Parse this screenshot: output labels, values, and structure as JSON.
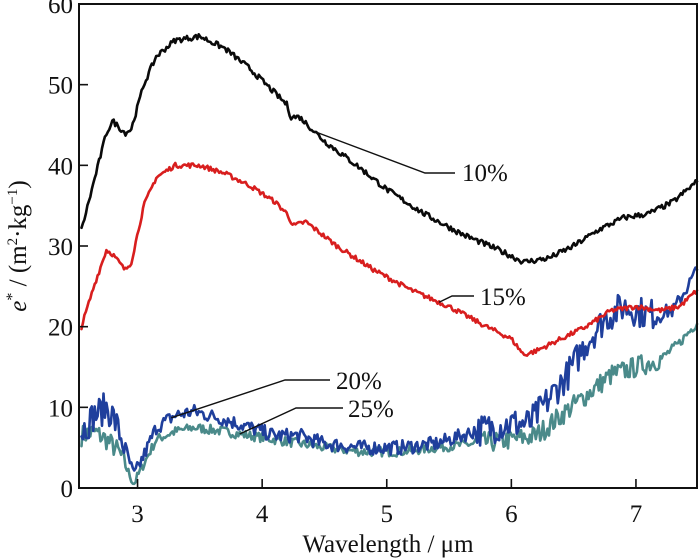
{
  "chart_data": {
    "type": "line",
    "title": "",
    "xlabel": "Wavelength / μm",
    "ylabel": "e* / (m²·kg⁻¹)",
    "ylabel_parts": {
      "symbol": "e",
      "sup1": "*",
      "unit_open": " / (m",
      "sup2": "2",
      "mid": "·kg",
      "sup3": "−1",
      "unit_close": ")"
    },
    "xlim": [
      2.53,
      7.49
    ],
    "ylim": [
      0,
      60
    ],
    "xticks": [
      3,
      4,
      5,
      6,
      7
    ],
    "xtick_labels": [
      "3",
      "4",
      "5",
      "6",
      "7"
    ],
    "yticks": [
      0,
      10,
      20,
      30,
      40,
      50,
      60
    ],
    "ytick_labels": [
      "0",
      "10",
      "20",
      "30",
      "40",
      "50",
      "60"
    ],
    "grid": false,
    "legend": "inline annotations",
    "series": [
      {
        "name": "10%",
        "color": "#0a0a0a",
        "x": [
          2.55,
          2.65,
          2.75,
          2.8,
          2.9,
          2.95,
          3.05,
          3.15,
          3.3,
          3.5,
          3.7,
          3.9,
          4.1,
          4.2,
          4.23,
          4.3,
          4.5,
          4.8,
          5.0,
          5.3,
          5.6,
          5.9,
          6.1,
          6.3,
          6.5,
          6.7,
          6.9,
          7.1,
          7.3,
          7.49
        ],
        "values": [
          32,
          38,
          44,
          45.5,
          44,
          44.5,
          50,
          53.5,
          55.5,
          56,
          54.5,
          52,
          49,
          47.5,
          46,
          46,
          43,
          39.5,
          37,
          34,
          31.5,
          29.5,
          28,
          28.5,
          30,
          32,
          33.5,
          34,
          35.5,
          38
        ]
      },
      {
        "name": "15%",
        "color": "#d81e1e",
        "x": [
          2.55,
          2.65,
          2.75,
          2.8,
          2.9,
          2.95,
          3.05,
          3.15,
          3.3,
          3.5,
          3.7,
          3.9,
          4.1,
          4.2,
          4.25,
          4.35,
          4.6,
          4.9,
          5.2,
          5.5,
          5.8,
          6.0,
          6.1,
          6.2,
          6.4,
          6.6,
          6.8,
          7.0,
          7.2,
          7.35,
          7.49
        ],
        "values": [
          20,
          25,
          29.5,
          29,
          27,
          28,
          35,
          38.5,
          40,
          40,
          39,
          37.5,
          35.5,
          34,
          32.5,
          33,
          30,
          27,
          24.5,
          22.5,
          20,
          18.5,
          16.5,
          17,
          18.5,
          20,
          22,
          22.5,
          22,
          22.5,
          24.5
        ]
      },
      {
        "name": "20%",
        "color": "#1f3f9c",
        "x": [
          2.55,
          2.65,
          2.75,
          2.8,
          2.9,
          2.97,
          3.05,
          3.15,
          3.3,
          3.45,
          3.7,
          3.9,
          4.1,
          4.3,
          4.5,
          4.8,
          5.1,
          5.4,
          5.7,
          6.0,
          6.15,
          6.3,
          6.45,
          6.6,
          6.75,
          6.9,
          7.1,
          7.3,
          7.49
        ],
        "values": [
          7,
          9,
          10,
          9,
          5,
          1.5,
          4,
          7.5,
          9,
          9.5,
          8.5,
          7.5,
          6.5,
          6.5,
          5.5,
          5,
          5,
          5.5,
          7,
          8,
          8,
          11,
          14,
          18,
          21,
          22.5,
          21.5,
          22,
          27
        ]
      },
      {
        "name": "25%",
        "color": "#4a8a8a",
        "x": [
          2.55,
          2.65,
          2.75,
          2.85,
          2.97,
          3.05,
          3.15,
          3.3,
          3.45,
          3.7,
          3.9,
          4.1,
          4.3,
          4.5,
          4.8,
          5.1,
          5.4,
          5.7,
          6.0,
          6.2,
          6.4,
          6.6,
          6.8,
          7.0,
          7.2,
          7.35,
          7.49
        ],
        "values": [
          6.5,
          7,
          6,
          4.5,
          0.5,
          3,
          6,
          7,
          7.5,
          7,
          6.5,
          6,
          5.5,
          5,
          4.5,
          4.5,
          5,
          5.5,
          6,
          6.5,
          9,
          11.5,
          14,
          15,
          16,
          18,
          20.5
        ]
      }
    ],
    "annotations": [
      {
        "text": "10%",
        "series": "10%",
        "at_x": 4.42
      },
      {
        "text": "15%",
        "series": "15%",
        "at_x": 5.42
      },
      {
        "text": "20%",
        "series": "20%",
        "at_x": 3.27
      },
      {
        "text": "25%",
        "series": "25%",
        "at_x": 3.82
      }
    ]
  }
}
